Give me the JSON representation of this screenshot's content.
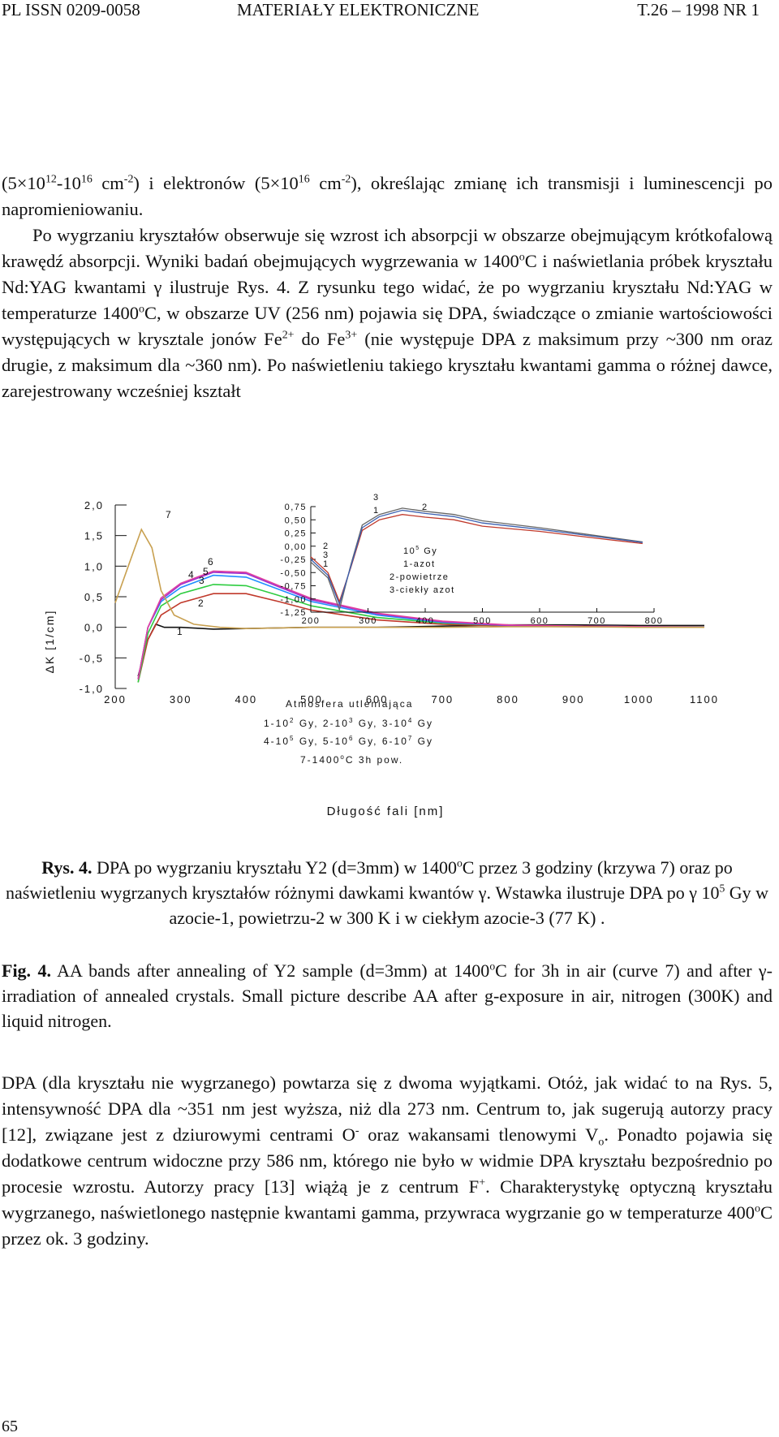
{
  "header": {
    "left": "PL ISSN 0209-0058",
    "center": "MATERIAŁY ELEKTRONICZNE",
    "right": "T.26 – 1998 NR 1"
  },
  "paragraph1": {
    "l1_a": "(5×10",
    "l1_a_sup": "12",
    "l1_b": "-10",
    "l1_b_sup": "16",
    "l1_c": " cm",
    "l1_c_sup": "-2",
    "l1_d": ") i elektronów (5×10",
    "l1_d_sup": "16",
    "l1_e": " cm",
    "l1_e_sup": "-2",
    "l1_f": "), określając zmianę ich transmisji i luminescencji po napromieniowaniu.",
    "l2": "Po wygrzaniu kryształów obserwuje się wzrost ich absorpcji w obszarze obejmującym krótkofalową krawędź absorpcji. Wyniki badań obejmujących wygrzewania w 1400",
    "l2_sup": "o",
    "l3": "C i naświetlania próbek kryształu Nd:YAG kwantami γ ilustruje Rys. 4. Z rysunku tego widać, że po wygrzaniu kryształu Nd:YAG w temperaturze 1400",
    "l3_sup": "o",
    "l4": "C, w obszarze UV (256 nm) pojawia się DPA, świadczące o zmianie wartościowości występujących w krysztale jonów Fe",
    "l4_sup": "2+",
    "l5": " do Fe",
    "l5_sup": "3+",
    "l6": " (nie występuje DPA z maksimum przy ~300 nm oraz drugie, z maksimum dla ~360 nm). Po naświetleniu takiego kryształu kwantami gamma o różnej dawce, zarejestrowany wcześniej kształt"
  },
  "figure": {
    "ylabel": "ΔK  [1/cm]",
    "xlabel": "Długość fali [nm]",
    "yticks": [
      "2,0",
      "1,5",
      "1,0",
      "0,5",
      "0,0",
      "-0,5",
      "-1,0"
    ],
    "xticks": [
      "200",
      "300",
      "400",
      "500",
      "600",
      "700",
      "800",
      "900",
      "1000",
      "1100"
    ],
    "legend_title": "Atmosfera utleniająca",
    "legend_l1": "1-10",
    "legend_l1_sup": "2",
    "legend_l1_b": " Gy, 2-10",
    "legend_l1_b_sup": "3",
    "legend_l1_c": " Gy, 3-10",
    "legend_l1_c_sup": "4",
    "legend_l1_d": " Gy",
    "legend_l2": "4-10",
    "legend_l2_sup": "5",
    "legend_l2_b": " Gy, 5-10",
    "legend_l2_b_sup": "6",
    "legend_l2_c": " Gy, 6-10",
    "legend_l2_c_sup": "7",
    "legend_l2_d": " Gy",
    "legend_l3": "7-1400",
    "legend_l3_sup": "o",
    "legend_l3_b": "C 3h pow.",
    "curve_labels": [
      "1",
      "2",
      "3",
      "4",
      "5",
      "6",
      "7"
    ],
    "inset": {
      "yticks": [
        "0,75",
        "0,50",
        "0,25",
        "0,00",
        "-0,25",
        "-0,50",
        "-0,75",
        "-1,00",
        "-1,25"
      ],
      "xticks": [
        "200",
        "300",
        "400",
        "500",
        "600",
        "700",
        "800"
      ],
      "legend_l1": "10",
      "legend_l1_sup": "5",
      "legend_l1_b": " Gy",
      "legend_l2": "1-azot",
      "legend_l3": "2-powietrze",
      "legend_l4": "3-ciekły azot",
      "curve_labels": [
        "1",
        "2",
        "3"
      ]
    }
  },
  "chart_data": [
    {
      "type": "line",
      "title": "",
      "xlabel": "Długość fali [nm]",
      "ylabel": "ΔK [1/cm]",
      "xlim": [
        200,
        1100
      ],
      "ylim": [
        -1.0,
        2.0
      ],
      "series": [
        {
          "name": "1",
          "color": "#111111",
          "x": [
            235,
            250,
            262,
            275,
            300,
            350,
            400,
            500,
            600,
            700,
            800,
            900,
            1000,
            1100
          ],
          "y": [
            -0.8,
            -0.2,
            0.05,
            0.0,
            0.0,
            -0.03,
            -0.02,
            0.0,
            0.0,
            0.02,
            0.04,
            0.04,
            0.03,
            0.03
          ]
        },
        {
          "name": "2",
          "color": "#c0392b",
          "x": [
            235,
            250,
            270,
            300,
            350,
            400,
            450,
            500,
            600,
            700,
            800,
            900,
            1000,
            1100
          ],
          "y": [
            -0.9,
            -0.2,
            0.2,
            0.4,
            0.55,
            0.55,
            0.42,
            0.28,
            0.12,
            0.05,
            0.02,
            0.01,
            0.01,
            0.0
          ]
        },
        {
          "name": "3",
          "color": "#2ecc40",
          "x": [
            235,
            250,
            270,
            300,
            350,
            400,
            450,
            500,
            600,
            700,
            800,
            900,
            1000,
            1100
          ],
          "y": [
            -0.9,
            -0.1,
            0.35,
            0.55,
            0.7,
            0.68,
            0.52,
            0.35,
            0.16,
            0.07,
            0.03,
            0.02,
            0.01,
            0.0
          ]
        },
        {
          "name": "4",
          "color": "#1f8fff",
          "x": [
            235,
            250,
            270,
            300,
            350,
            400,
            450,
            500,
            600,
            700,
            800,
            900,
            1000,
            1100
          ],
          "y": [
            -0.85,
            0.0,
            0.42,
            0.65,
            0.85,
            0.82,
            0.62,
            0.42,
            0.2,
            0.08,
            0.03,
            0.02,
            0.01,
            0.0
          ]
        },
        {
          "name": "5",
          "color": "#9b30d0",
          "x": [
            235,
            250,
            270,
            300,
            350,
            400,
            450,
            500,
            600,
            700,
            800,
            900,
            1000,
            1100
          ],
          "y": [
            -0.85,
            0.0,
            0.45,
            0.7,
            0.9,
            0.88,
            0.66,
            0.45,
            0.22,
            0.09,
            0.03,
            0.02,
            0.01,
            0.0
          ]
        },
        {
          "name": "6",
          "color": "#e040a0",
          "x": [
            235,
            250,
            270,
            300,
            350,
            400,
            450,
            500,
            600,
            700,
            800,
            900,
            1000,
            1100
          ],
          "y": [
            -0.85,
            0.0,
            0.48,
            0.72,
            0.92,
            0.9,
            0.68,
            0.47,
            0.23,
            0.1,
            0.04,
            0.02,
            0.01,
            0.0
          ]
        },
        {
          "name": "7",
          "color": "#c8a050",
          "x": [
            200,
            220,
            240,
            256,
            270,
            290,
            320,
            360,
            400,
            500,
            600,
            700,
            800,
            900,
            1000,
            1100
          ],
          "y": [
            0.4,
            1.0,
            1.6,
            1.3,
            0.6,
            0.2,
            0.05,
            0.0,
            -0.02,
            0.0,
            0.0,
            0.0,
            0.01,
            0.01,
            0.0,
            0.0
          ]
        }
      ]
    },
    {
      "type": "line",
      "title": "",
      "xlim": [
        200,
        800
      ],
      "ylim": [
        -1.25,
        0.75
      ],
      "series": [
        {
          "name": "1",
          "color": "#c0392b",
          "x": [
            200,
            230,
            250,
            270,
            290,
            320,
            360,
            400,
            450,
            500,
            600,
            700,
            780
          ],
          "y": [
            -0.2,
            -0.5,
            -1.05,
            -0.4,
            0.3,
            0.5,
            0.6,
            0.55,
            0.5,
            0.38,
            0.28,
            0.15,
            0.05
          ]
        },
        {
          "name": "2",
          "color": "#666666",
          "x": [
            200,
            230,
            250,
            270,
            290,
            320,
            360,
            400,
            450,
            500,
            600,
            700,
            780
          ],
          "y": [
            -0.3,
            -0.6,
            -1.2,
            -0.35,
            0.4,
            0.6,
            0.72,
            0.66,
            0.6,
            0.48,
            0.35,
            0.2,
            0.08
          ]
        },
        {
          "name": "3",
          "color": "#3a5fb0",
          "x": [
            200,
            230,
            250,
            270,
            290,
            320,
            360,
            400,
            450,
            500,
            600,
            700,
            780
          ],
          "y": [
            -0.25,
            -0.55,
            -1.1,
            -0.38,
            0.35,
            0.56,
            0.68,
            0.62,
            0.56,
            0.44,
            0.32,
            0.18,
            0.07
          ]
        }
      ]
    }
  ],
  "caption_pl": {
    "label": "Rys. 4.",
    "t1": " DPA po wygrzaniu kryształu Y2 (d=3mm) w 1400",
    "t1_sup": "o",
    "t2": "C przez 3 godziny (krzywa 7) oraz po naświetleniu wygrzanych kryształów różnymi dawkami kwantów γ. Wstawka ilustruje DPA po γ 10",
    "t2_sup": "5",
    "t3": " Gy w azocie-1, powietrzu-2 w 300 K i w ciekłym azocie-3 (77 K) ."
  },
  "caption_en": {
    "label": "Fig. 4.",
    "t1": " AA bands after annealing of Y2 sample (d=3mm) at 1400",
    "t1_sup": "o",
    "t2": "C for 3h in air (curve 7) and after γ-irradiation of annealed crystals. Small picture describe AA after g-exposure in air, nitrogen (300K) and liquid nitrogen."
  },
  "paragraph2": {
    "t1": "DPA (dla kryształu nie wygrzanego) powtarza się z dwoma wyjątkami. Otóż, jak widać to na Rys. 5, intensywność DPA dla ~351 nm jest wyższa, niż dla 273 nm. Centrum to, jak sugerują autorzy pracy [12], związane jest z dziurowymi centrami O",
    "t1_sup": "-",
    "t2": " oraz wakansami tlenowymi V",
    "t2_sub": "o",
    "t3": ". Ponadto pojawia się dodatkowe centrum widoczne przy 586 nm, którego nie było w widmie DPA kryształu bezpośrednio po procesie wzrostu. Autorzy pracy [13] wiążą je z centrum F",
    "t3_sup": "+",
    "t4": ". Charakterystykę optyczną kryształu wygrzanego, naświetlonego następnie kwantami gamma, przywraca wygrzanie go w temperaturze 400",
    "t4_sup": "o",
    "t5": "C przez ok. 3 godziny."
  },
  "page_number": "65"
}
